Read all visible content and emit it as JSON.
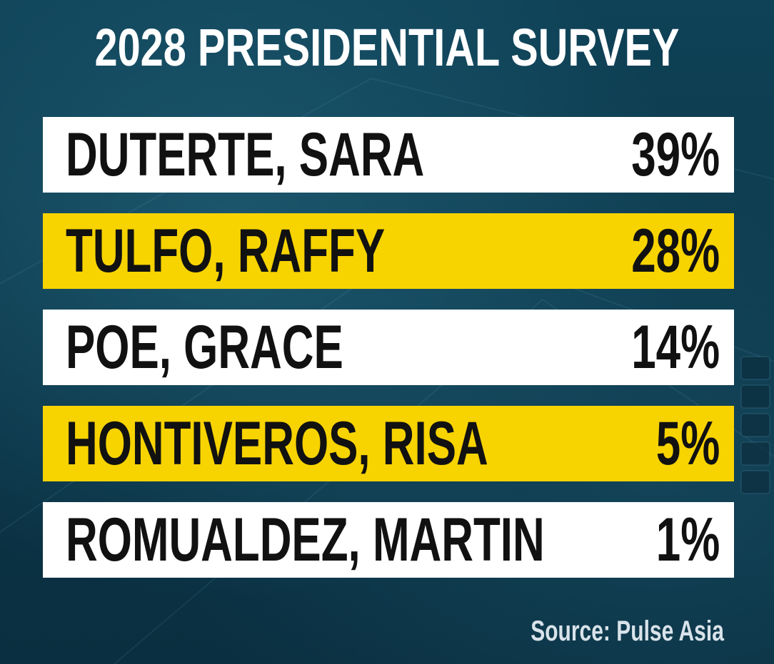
{
  "chart_data": {
    "type": "table",
    "title": "2028 PRESIDENTIAL SURVEY",
    "categories": [
      "DUTERTE, SARA",
      "TULFO, RAFFY",
      "POE, GRACE",
      "HONTIVEROS, RISA",
      "ROMUALDEZ, MARTIN"
    ],
    "values": [
      39,
      28,
      14,
      5,
      1
    ],
    "rows": [
      {
        "name": "DUTERTE, SARA",
        "value": "39%",
        "highlight": false
      },
      {
        "name": "TULFO, RAFFY",
        "value": "28%",
        "highlight": true
      },
      {
        "name": "POE, GRACE",
        "value": "14%",
        "highlight": false
      },
      {
        "name": "HONTIVEROS, RISA",
        "value": "5%",
        "highlight": true
      },
      {
        "name": "ROMUALDEZ, MARTIN",
        "value": "1%",
        "highlight": false
      }
    ],
    "source": "Source: Pulse Asia"
  },
  "colors": {
    "background": "#0d3a4e",
    "row_light": "#ffffff",
    "row_highlight": "#f7d300",
    "text_dark": "#111111",
    "title_text": "#ffffff",
    "source_text": "#d8e3ea"
  }
}
